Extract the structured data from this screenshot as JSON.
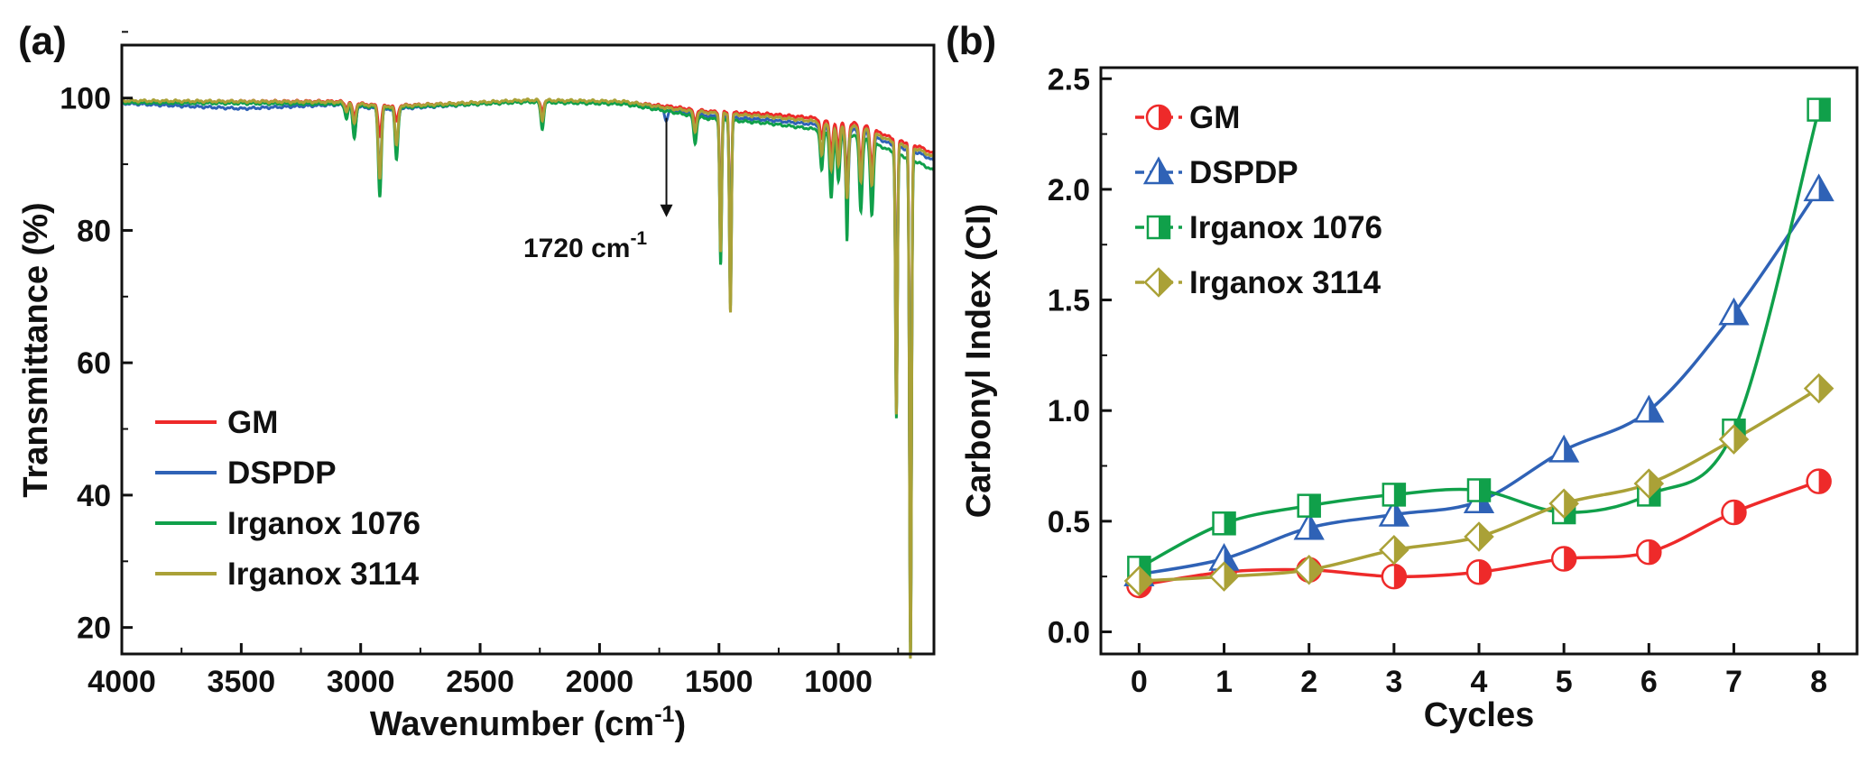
{
  "chart_data": [
    {
      "panel": "(a)",
      "type": "line",
      "title": "",
      "xlabel": "Wavenumber (cm",
      "xlabel_sup": "-1",
      "xlabel_close": ")",
      "ylabel": "Transmittance (%)",
      "xlim": [
        4000,
        600
      ],
      "ylim": [
        16,
        108
      ],
      "xticks": [
        "4000",
        "3500",
        "3000",
        "2500",
        "2000",
        "1500",
        "1000"
      ],
      "yticks": [
        "20",
        "40",
        "60",
        "80",
        "100"
      ],
      "annotation": {
        "text": "1720 cm",
        "sup": "-1",
        "x": 1720,
        "y_from": 97,
        "y_to": 82
      },
      "legend": [
        "GM",
        "DSPDP",
        "Irganox 1076",
        "Irganox 3114"
      ],
      "series": [
        {
          "name": "GM",
          "color": "#ee2a2a",
          "baseline": [
            [
              4000,
              99.5
            ],
            [
              3100,
              99.5
            ],
            [
              2900,
              98.8
            ],
            [
              2300,
              99.6
            ],
            [
              1900,
              99.4
            ],
            [
              1700,
              98.7
            ],
            [
              1550,
              98.0
            ],
            [
              1300,
              97.6
            ],
            [
              1100,
              97.0
            ],
            [
              900,
              96.0
            ],
            [
              780,
              94.0
            ],
            [
              650,
              92.5
            ],
            [
              600,
              91.5
            ]
          ],
          "peaks": [
            [
              3060,
              0.8
            ],
            [
              3027,
              2.0
            ],
            [
              2920,
              4.5
            ],
            [
              2850,
              2.5
            ],
            [
              2240,
              1.5
            ],
            [
              1600,
              1.8
            ],
            [
              1493,
              18
            ],
            [
              1452,
              25
            ],
            [
              1070,
              3
            ],
            [
              1030,
              5
            ],
            [
              1000,
              4
            ],
            [
              964,
              8
            ],
            [
              906,
              6
            ],
            [
              860,
              6
            ],
            [
              757,
              36
            ],
            [
              698,
              74
            ]
          ]
        },
        {
          "name": "DSPDP",
          "color": "#2f62b6",
          "baseline": [
            [
              4000,
              99.2
            ],
            [
              3500,
              98.4
            ],
            [
              3100,
              99.0
            ],
            [
              2900,
              98.3
            ],
            [
              2300,
              99.5
            ],
            [
              1900,
              99.2
            ],
            [
              1700,
              98.2
            ],
            [
              1550,
              97.3
            ],
            [
              1300,
              96.7
            ],
            [
              1100,
              96.0
            ],
            [
              900,
              95.0
            ],
            [
              780,
              93.0
            ],
            [
              650,
              91.5
            ],
            [
              600,
              90.5
            ]
          ],
          "peaks": [
            [
              3060,
              1.5
            ],
            [
              3027,
              4.5
            ],
            [
              2920,
              9.5
            ],
            [
              2850,
              6
            ],
            [
              2240,
              3.5
            ],
            [
              1720,
              1.8
            ],
            [
              1600,
              3.5
            ],
            [
              1493,
              20
            ],
            [
              1452,
              27
            ],
            [
              1070,
              5
            ],
            [
              1030,
              8
            ],
            [
              1000,
              6
            ],
            [
              964,
              12
            ],
            [
              906,
              9
            ],
            [
              860,
              9
            ],
            [
              757,
              38
            ],
            [
              698,
              75
            ]
          ]
        },
        {
          "name": "Irganox 1076",
          "color": "#10a04a",
          "baseline": [
            [
              4000,
              99.3
            ],
            [
              3100,
              99.1
            ],
            [
              2900,
              98.5
            ],
            [
              2300,
              99.4
            ],
            [
              1900,
              99.1
            ],
            [
              1700,
              97.9
            ],
            [
              1550,
              96.9
            ],
            [
              1300,
              96.2
            ],
            [
              1100,
              95.3
            ],
            [
              900,
              94.0
            ],
            [
              780,
              92.0
            ],
            [
              650,
              90.0
            ],
            [
              600,
              89.0
            ]
          ],
          "peaks": [
            [
              3060,
              2
            ],
            [
              3027,
              5
            ],
            [
              2920,
              13.5
            ],
            [
              2850,
              8
            ],
            [
              2240,
              4
            ],
            [
              1600,
              4
            ],
            [
              1493,
              22
            ],
            [
              1452,
              28
            ],
            [
              1070,
              6
            ],
            [
              1030,
              10
            ],
            [
              1000,
              7
            ],
            [
              964,
              16
            ],
            [
              906,
              11
            ],
            [
              860,
              11
            ],
            [
              757,
              40
            ],
            [
              698,
              76
            ]
          ]
        },
        {
          "name": "Irganox 3114",
          "color": "#aaa137",
          "baseline": [
            [
              4000,
              99.6
            ],
            [
              3100,
              99.4
            ],
            [
              2900,
              98.7
            ],
            [
              2300,
              99.7
            ],
            [
              1900,
              99.5
            ],
            [
              1700,
              98.4
            ],
            [
              1550,
              97.8
            ],
            [
              1300,
              97.2
            ],
            [
              1100,
              96.5
            ],
            [
              900,
              95.5
            ],
            [
              780,
              93.5
            ],
            [
              650,
              92.0
            ],
            [
              600,
              91.0
            ]
          ],
          "peaks": [
            [
              3060,
              1.2
            ],
            [
              3027,
              3
            ],
            [
              2920,
              11
            ],
            [
              2850,
              6
            ],
            [
              2240,
              3
            ],
            [
              1600,
              3
            ],
            [
              1493,
              21
            ],
            [
              1452,
              30
            ],
            [
              1070,
              5
            ],
            [
              1030,
              7
            ],
            [
              1000,
              6
            ],
            [
              964,
              11
            ],
            [
              906,
              8
            ],
            [
              860,
              8
            ],
            [
              757,
              41
            ],
            [
              698,
              78
            ]
          ]
        }
      ]
    },
    {
      "panel": "(b)",
      "type": "line",
      "title": "",
      "xlabel": "Cycles",
      "ylabel": "Carbonyl Index (CI)",
      "x": [
        0,
        1,
        2,
        3,
        4,
        5,
        6,
        7,
        8
      ],
      "xlim": [
        -0.45,
        8.45
      ],
      "ylim": [
        -0.1,
        2.55
      ],
      "xticks": [
        "0",
        "1",
        "2",
        "3",
        "4",
        "5",
        "6",
        "7",
        "8"
      ],
      "yticks": [
        "0.0",
        "0.5",
        "1.0",
        "1.5",
        "2.0",
        "2.5"
      ],
      "legend": [
        "GM",
        "DSPDP",
        "Irganox 1076",
        "Irganox 3114"
      ],
      "series": [
        {
          "name": "GM",
          "color": "#ee2a2a",
          "marker": "circle-half",
          "values": [
            0.21,
            0.27,
            0.28,
            0.25,
            0.27,
            0.33,
            0.36,
            0.54,
            0.68
          ]
        },
        {
          "name": "DSPDP",
          "color": "#2f62b6",
          "marker": "triangle-half",
          "values": [
            0.26,
            0.33,
            0.47,
            0.53,
            0.59,
            0.82,
            1.0,
            1.44,
            2.0
          ]
        },
        {
          "name": "Irganox 1076",
          "color": "#10a04a",
          "marker": "square-half",
          "values": [
            0.29,
            0.49,
            0.57,
            0.62,
            0.64,
            0.54,
            0.62,
            0.91,
            2.36
          ]
        },
        {
          "name": "Irganox 3114",
          "color": "#aaa137",
          "marker": "diamond-half",
          "values": [
            0.23,
            0.25,
            0.28,
            0.37,
            0.43,
            0.58,
            0.67,
            0.87,
            1.1
          ]
        }
      ]
    }
  ]
}
